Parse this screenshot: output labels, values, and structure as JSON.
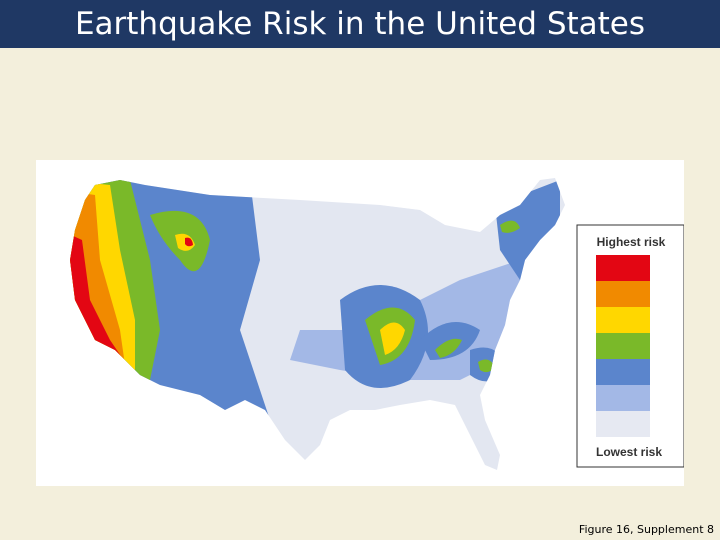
{
  "header": {
    "title": "Earthquake Risk in the United States"
  },
  "legend": {
    "top_label": "Highest risk",
    "bottom_label": "Lowest risk"
  },
  "caption": "Figure 16, Supplement 8"
}
